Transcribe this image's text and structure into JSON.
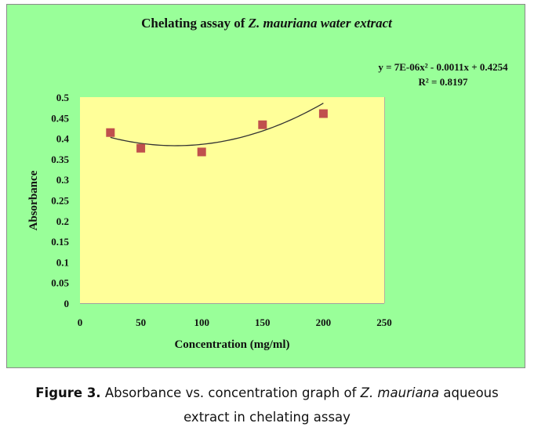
{
  "chart_data": {
    "type": "scatter",
    "title_prefix": "Chelating assay of ",
    "title_italic": "Z. mauriana water extract",
    "xlabel": "Concentration (mg/ml)",
    "ylabel": "Absorbance",
    "xlim": [
      0,
      250
    ],
    "ylim": [
      0,
      0.5
    ],
    "xticks": [
      "0",
      "50",
      "100",
      "150",
      "200",
      "250"
    ],
    "xtick_values": [
      0,
      50,
      100,
      150,
      200,
      250
    ],
    "yticks": [
      "0",
      "0.05",
      "0.1",
      "0.15",
      "0.2",
      "0.25",
      "0.3",
      "0.35",
      "0.4",
      "0.45",
      "0.5"
    ],
    "ytick_values": [
      0,
      0.05,
      0.1,
      0.15,
      0.2,
      0.25,
      0.3,
      0.35,
      0.4,
      0.45,
      0.5
    ],
    "grid": false,
    "series": [
      {
        "name": "Absorbance",
        "x": [
          25,
          50,
          100,
          150,
          200
        ],
        "y": [
          0.414,
          0.376,
          0.367,
          0.433,
          0.46
        ],
        "marker": "square",
        "color": "#c0504d"
      }
    ],
    "trendline": {
      "type": "polynomial",
      "order": 2,
      "coefficients": [
        7e-06,
        -0.0011,
        0.4254
      ],
      "x_range": [
        25,
        200
      ],
      "equation": "y = 7E-06x² - 0.0011x + 0.4254",
      "r_squared": "R² = 0.8197",
      "color": "#333333"
    },
    "colors": {
      "chart_background": "#99ff99",
      "plot_background": "#ffff99"
    }
  },
  "caption": {
    "label": "Figure 3.",
    "text_before": " Absorbance vs. concentration graph of ",
    "italic": "Z. mauriana",
    "text_after": " aqueous",
    "line2": "extract in chelating assay"
  }
}
